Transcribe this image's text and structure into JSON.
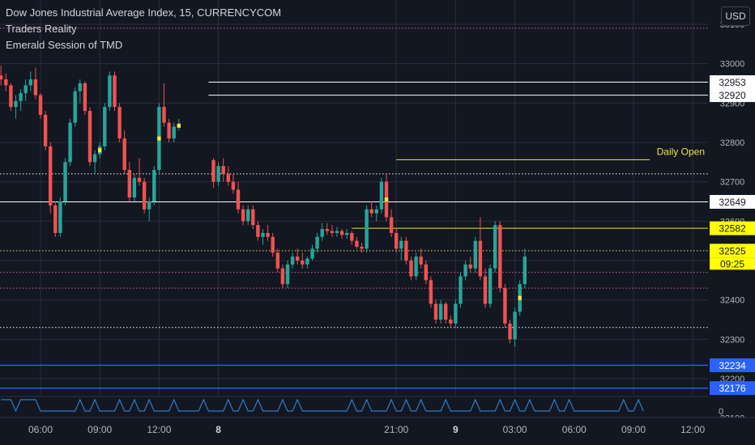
{
  "legend": {
    "title": "Dow Jones Industrial Average Index, 15, CURRENCYCOM",
    "indicator1": "Traders Reality",
    "indicator2": "Emerald Session of TMD"
  },
  "currency": "USD",
  "colors": {
    "background": "#131722",
    "up": "#26a69a",
    "down": "#ef5350",
    "yellow_candle": "#f5e83b",
    "level_white": "#ffffff",
    "level_yellow": "#f0e442",
    "level_blue": "#2962ff",
    "dotted_pink": "#e05c9f",
    "osc_line": "#2f7cc4",
    "grid": "#2a2e39",
    "text": "#b2b5be"
  },
  "price_axis": {
    "ticks": [
      {
        "price": 33100,
        "label": "33100"
      },
      {
        "price": 33000,
        "label": "33000"
      },
      {
        "price": 32900,
        "label": "32900"
      },
      {
        "price": 32800,
        "label": "32800"
      },
      {
        "price": 32700,
        "label": "32700"
      },
      {
        "price": 32600,
        "label": "32600"
      },
      {
        "price": 32500,
        "label": "32500"
      },
      {
        "price": 32400,
        "label": "32400"
      },
      {
        "price": 32300,
        "label": "32300"
      },
      {
        "price": 32200,
        "label": "32200"
      },
      {
        "price": 32100,
        "label": "32100"
      }
    ],
    "badges": [
      {
        "label": "32953",
        "price": 32953,
        "style": "white"
      },
      {
        "label": "32920",
        "price": 32920,
        "style": "white"
      },
      {
        "label": "32649",
        "price": 32649,
        "style": "white"
      },
      {
        "label": "32582",
        "price": 32582,
        "style": "yellow"
      },
      {
        "label": "32525",
        "price": 32525,
        "style": "yellow-price"
      },
      {
        "label": "32234",
        "price": 32234,
        "style": "blue"
      },
      {
        "label": "32176",
        "price": 32176,
        "style": "blue"
      }
    ],
    "countdown": "09:25",
    "osc_zero": "0"
  },
  "time_axis": {
    "ticks": [
      {
        "t": 0,
        "label": "06:00"
      },
      {
        "t": 12,
        "label": "09:00"
      },
      {
        "t": 24,
        "label": "12:00"
      },
      {
        "t": 36,
        "label": "8",
        "bold": true
      },
      {
        "t": 72,
        "label": "21:00"
      },
      {
        "t": 84,
        "label": "9",
        "bold": true
      },
      {
        "t": 96,
        "label": "03:00"
      },
      {
        "t": 108,
        "label": "06:00"
      },
      {
        "t": 120,
        "label": "09:00"
      },
      {
        "t": 132,
        "label": "12:00"
      }
    ]
  },
  "annotations": {
    "daily_open": "Daily Open"
  },
  "chart_data": {
    "type": "candlestick",
    "title": "Dow Jones Industrial Average Index, 15, CURRENCYCOM",
    "interval": "15",
    "x_unit": "15-minute bars; t=0 at 06:00, t=36 at day 8 00:00, t=84 at day 9 00:00",
    "ylim": [
      32090,
      33130
    ],
    "levels": [
      {
        "price": 32953,
        "color": "white",
        "style": "solid",
        "from": 34
      },
      {
        "price": 32920,
        "color": "white",
        "style": "solid",
        "from": 34
      },
      {
        "price": 32649,
        "color": "white",
        "style": "solid",
        "from": 0
      },
      {
        "price": 32582,
        "color": "yellow",
        "style": "solid",
        "from": 63
      },
      {
        "price": 32756,
        "color": "yellow",
        "style": "solid",
        "from": 72,
        "label": "Daily Open"
      },
      {
        "price": 32525,
        "color": "yellow",
        "style": "dotted",
        "from": 0
      },
      {
        "price": 32234,
        "color": "blue",
        "style": "solid",
        "from": 0
      },
      {
        "price": 32176,
        "color": "blue",
        "style": "solid",
        "from": 0
      },
      {
        "price": 33090,
        "color": "pink",
        "style": "dotted",
        "from": 0
      },
      {
        "price": 32720,
        "color": "white",
        "style": "dotted",
        "from": 0
      },
      {
        "price": 32470,
        "color": "pink",
        "style": "dotted",
        "from": 0
      },
      {
        "price": 32430,
        "color": "pink",
        "style": "dotted",
        "from": 0
      },
      {
        "price": 32330,
        "color": "white",
        "style": "dotted",
        "from": 0
      }
    ],
    "candles": [
      [
        -8,
        32970,
        32995,
        32945,
        32960
      ],
      [
        -7,
        32960,
        32975,
        32930,
        32945
      ],
      [
        -6,
        32945,
        32950,
        32880,
        32890
      ],
      [
        -5,
        32890,
        32920,
        32860,
        32905
      ],
      [
        -4,
        32905,
        32935,
        32880,
        32925
      ],
      [
        -3,
        32925,
        32960,
        32905,
        32945
      ],
      [
        -2,
        32945,
        32980,
        32930,
        32960
      ],
      [
        -1,
        32960,
        32990,
        32910,
        32920
      ],
      [
        0,
        32920,
        32925,
        32860,
        32870
      ],
      [
        1,
        32870,
        32880,
        32780,
        32790
      ],
      [
        2,
        32790,
        32800,
        32620,
        32640
      ],
      [
        3,
        32640,
        32650,
        32560,
        32570
      ],
      [
        4,
        32570,
        32660,
        32560,
        32650
      ],
      [
        5,
        32650,
        32760,
        32640,
        32750
      ],
      [
        6,
        32750,
        32860,
        32740,
        32850
      ],
      [
        7,
        32850,
        32940,
        32840,
        32930
      ],
      [
        8,
        32930,
        32960,
        32900,
        32950
      ],
      [
        9,
        32950,
        32955,
        32870,
        32880
      ],
      [
        10,
        32880,
        32890,
        32740,
        32750
      ],
      [
        11,
        32750,
        32780,
        32720,
        32770
      ],
      [
        12,
        32770,
        32800,
        32760,
        32790
      ],
      [
        13,
        32790,
        32900,
        32780,
        32890
      ],
      [
        14,
        32890,
        32980,
        32880,
        32970
      ],
      [
        15,
        32970,
        32980,
        32880,
        32890
      ],
      [
        16,
        32890,
        32900,
        32800,
        32810
      ],
      [
        17,
        32810,
        32830,
        32720,
        32730
      ],
      [
        18,
        32730,
        32750,
        32650,
        32660
      ],
      [
        19,
        32660,
        32720,
        32650,
        32710
      ],
      [
        20,
        32710,
        32760,
        32690,
        32700
      ],
      [
        21,
        32700,
        32710,
        32620,
        32630
      ],
      [
        22,
        32630,
        32660,
        32600,
        32650
      ],
      [
        23,
        32650,
        32740,
        32640,
        32730
      ],
      [
        24,
        32730,
        32900,
        32720,
        32890
      ],
      [
        25,
        32890,
        32950,
        32840,
        32850
      ],
      [
        26,
        32850,
        32860,
        32800,
        32810
      ],
      [
        27,
        32810,
        32850,
        32800,
        32840
      ],
      [
        28,
        32840,
        32860,
        32830,
        32845
      ],
      [
        35,
        32755,
        32760,
        32685,
        32700
      ],
      [
        36,
        32700,
        32750,
        32690,
        32740
      ],
      [
        37,
        32740,
        32760,
        32700,
        32720
      ],
      [
        38,
        32720,
        32740,
        32690,
        32700
      ],
      [
        39,
        32700,
        32720,
        32670,
        32680
      ],
      [
        40,
        32680,
        32700,
        32620,
        32630
      ],
      [
        41,
        32630,
        32640,
        32590,
        32600
      ],
      [
        42,
        32600,
        32640,
        32590,
        32630
      ],
      [
        43,
        32630,
        32640,
        32580,
        32590
      ],
      [
        44,
        32590,
        32600,
        32550,
        32560
      ],
      [
        45,
        32560,
        32580,
        32540,
        32570
      ],
      [
        46,
        32570,
        32590,
        32550,
        32560
      ],
      [
        47,
        32560,
        32570,
        32510,
        32520
      ],
      [
        48,
        32520,
        32530,
        32470,
        32480
      ],
      [
        49,
        32480,
        32490,
        32430,
        32440
      ],
      [
        50,
        32440,
        32500,
        32430,
        32490
      ],
      [
        51,
        32490,
        32520,
        32480,
        32510
      ],
      [
        52,
        32510,
        32530,
        32490,
        32500
      ],
      [
        53,
        32500,
        32520,
        32480,
        32490
      ],
      [
        54,
        32490,
        32510,
        32480,
        32505
      ],
      [
        55,
        32505,
        32540,
        32500,
        32530
      ],
      [
        56,
        32530,
        32570,
        32520,
        32560
      ],
      [
        57,
        32560,
        32595,
        32550,
        32580
      ],
      [
        58,
        32580,
        32595,
        32565,
        32575
      ],
      [
        59,
        32575,
        32590,
        32560,
        32570
      ],
      [
        60,
        32570,
        32585,
        32560,
        32575
      ],
      [
        61,
        32575,
        32580,
        32555,
        32565
      ],
      [
        62,
        32565,
        32580,
        32555,
        32570
      ],
      [
        63,
        32570,
        32575,
        32540,
        32550
      ],
      [
        64,
        32550,
        32560,
        32530,
        32535
      ],
      [
        65,
        32535,
        32545,
        32520,
        32530
      ],
      [
        66,
        32530,
        32640,
        32520,
        32630
      ],
      [
        67,
        32630,
        32650,
        32610,
        32620
      ],
      [
        68,
        32620,
        32640,
        32600,
        32630
      ],
      [
        69,
        32630,
        32710,
        32620,
        32700
      ],
      [
        70,
        32700,
        32720,
        32600,
        32610
      ],
      [
        71,
        32610,
        32630,
        32560,
        32570
      ],
      [
        72,
        32570,
        32580,
        32520,
        32530
      ],
      [
        73,
        32530,
        32560,
        32500,
        32550
      ],
      [
        74,
        32550,
        32560,
        32490,
        32500
      ],
      [
        75,
        32500,
        32510,
        32450,
        32460
      ],
      [
        76,
        32460,
        32520,
        32450,
        32510
      ],
      [
        77,
        32510,
        32530,
        32480,
        32490
      ],
      [
        78,
        32490,
        32500,
        32440,
        32450
      ],
      [
        79,
        32450,
        32460,
        32380,
        32390
      ],
      [
        80,
        32390,
        32400,
        32340,
        32350
      ],
      [
        81,
        32350,
        32400,
        32340,
        32390
      ],
      [
        82,
        32390,
        32395,
        32340,
        32350
      ],
      [
        83,
        32350,
        32360,
        32330,
        32340
      ],
      [
        84,
        32340,
        32400,
        32330,
        32390
      ],
      [
        85,
        32390,
        32470,
        32380,
        32460
      ],
      [
        86,
        32460,
        32500,
        32450,
        32490
      ],
      [
        87,
        32490,
        32510,
        32470,
        32480
      ],
      [
        88,
        32480,
        32560,
        32470,
        32550
      ],
      [
        89,
        32550,
        32610,
        32450,
        32460
      ],
      [
        90,
        32460,
        32480,
        32380,
        32390
      ],
      [
        91,
        32390,
        32490,
        32380,
        32480
      ],
      [
        92,
        32480,
        32600,
        32470,
        32590
      ],
      [
        93,
        32590,
        32600,
        32420,
        32430
      ],
      [
        94,
        32430,
        32440,
        32330,
        32340
      ],
      [
        95,
        32340,
        32350,
        32290,
        32300
      ],
      [
        96,
        32300,
        32380,
        32280,
        32370
      ],
      [
        97,
        32370,
        32450,
        32360,
        32440
      ],
      [
        98,
        32440,
        32530,
        32430,
        32510
      ]
    ]
  }
}
